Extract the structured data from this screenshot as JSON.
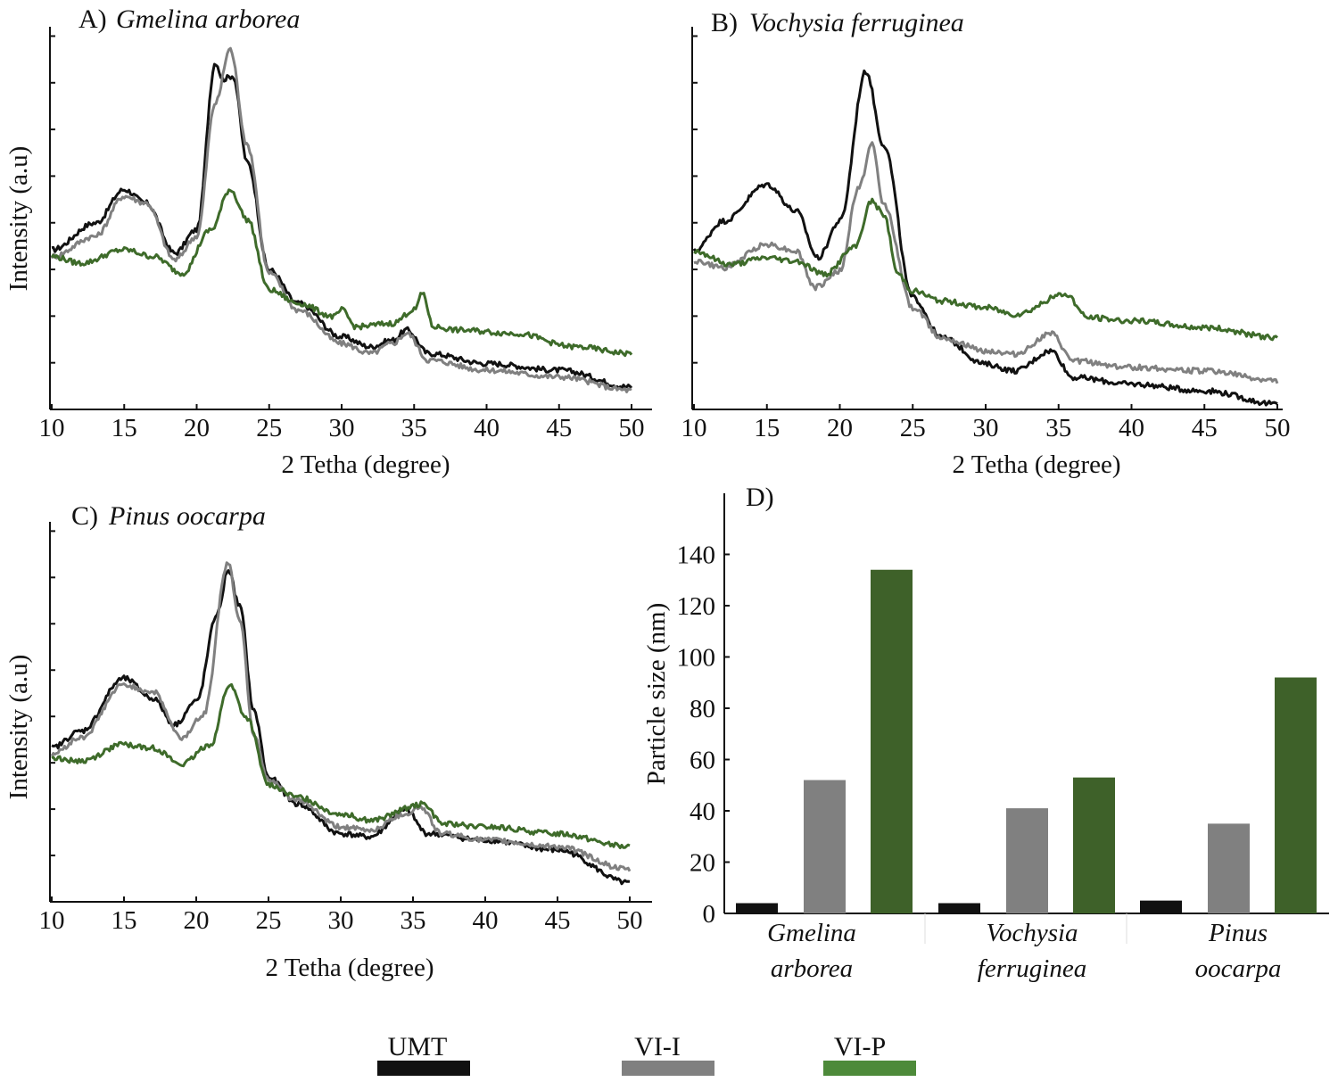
{
  "colors": {
    "UMT": "#111111",
    "VI-I": "#808080",
    "VI-P": "#3e6b2a",
    "VI-P-legend": "#4d8a3a"
  },
  "legend": {
    "items": [
      "UMT",
      "VI-I",
      "VI-P"
    ]
  },
  "chart_data": [
    {
      "id": "A",
      "type": "line",
      "label": "A)",
      "species": "Gmelina arborea",
      "xlabel": "2 Tetha (degree)",
      "ylabel": "Intensity (a.u)",
      "xlim": [
        10,
        50
      ],
      "ylim": [
        0,
        100
      ],
      "xticks": [
        "10",
        "15",
        "20",
        "25",
        "30",
        "35",
        "40",
        "45",
        "50"
      ],
      "series": [
        {
          "name": "UMT",
          "x": [
            10,
            13,
            15,
            16.5,
            18.5,
            20,
            21.3,
            21.8,
            22.5,
            23.5,
            25,
            27,
            30,
            32,
            33.5,
            34.5,
            36,
            40,
            45,
            50
          ],
          "y": [
            44,
            52,
            62,
            58,
            43,
            50,
            100,
            95,
            96,
            70,
            38,
            28,
            18,
            15,
            17,
            20,
            13,
            10,
            8,
            3
          ]
        },
        {
          "name": "VI-I",
          "x": [
            10,
            13,
            15,
            16.5,
            18.5,
            20,
            21.3,
            22.3,
            23.5,
            25,
            27,
            30,
            32,
            33.5,
            34.5,
            36,
            40,
            45,
            50
          ],
          "y": [
            42,
            48,
            60,
            58,
            41,
            48,
            88,
            104,
            75,
            37,
            26,
            16,
            13,
            16,
            19,
            11,
            8,
            6,
            2
          ]
        },
        {
          "name": "VI-P",
          "x": [
            10,
            12,
            15,
            17,
            19,
            21,
            22.3,
            23.5,
            25,
            27,
            29.5,
            30,
            31,
            33.5,
            35,
            35.6,
            36.3,
            38,
            42,
            46,
            50
          ],
          "y": [
            42,
            40,
            44,
            42,
            37,
            50,
            62,
            53,
            32,
            28,
            24,
            26,
            21,
            22,
            26,
            31,
            21,
            20,
            19,
            15,
            13
          ]
        }
      ]
    },
    {
      "id": "B",
      "type": "line",
      "label": "B)",
      "species": "Vochysia ferruginea",
      "xlabel": "2 Tetha (degree)",
      "ylabel": "",
      "xlim": [
        10,
        50
      ],
      "ylim": [
        0,
        100
      ],
      "xticks": [
        "10",
        "15",
        "20",
        "25",
        "30",
        "35",
        "40",
        "45",
        "50"
      ],
      "series": [
        {
          "name": "UMT",
          "x": [
            10,
            12,
            15,
            17,
            18.5,
            20,
            21.8,
            23,
            25,
            27,
            30,
            32,
            34.5,
            36,
            40,
            45,
            50
          ],
          "y": [
            46,
            55,
            66,
            58,
            44,
            55,
            100,
            78,
            32,
            20,
            12,
            10,
            16,
            8,
            6,
            4,
            0
          ]
        },
        {
          "name": "VI-I",
          "x": [
            10,
            12,
            15,
            17,
            18.3,
            20,
            21.3,
            22.2,
            23,
            25,
            27,
            30,
            32,
            34.5,
            36,
            40,
            45,
            50
          ],
          "y": [
            43,
            41,
            48,
            46,
            35,
            40,
            65,
            78,
            60,
            29,
            20,
            16,
            15,
            21,
            13,
            11,
            10,
            7
          ]
        },
        {
          "name": "VI-P",
          "x": [
            10,
            12.5,
            15,
            17,
            19,
            21,
            22.2,
            23,
            24,
            25,
            27,
            30,
            32,
            35.5,
            37,
            40,
            45,
            50
          ],
          "y": [
            46,
            42,
            44,
            43,
            39,
            47,
            61,
            57,
            39,
            34,
            31,
            29,
            27,
            33,
            26,
            25,
            23,
            20
          ]
        }
      ]
    },
    {
      "id": "C",
      "type": "line",
      "label": "C)",
      "species": "Pinus oocarpa",
      "xlabel": "2 Tetha (degree)",
      "ylabel": "Intensity (a.u)",
      "xlim": [
        10,
        50
      ],
      "ylim": [
        0,
        100
      ],
      "xticks": [
        "10",
        "15",
        "20",
        "25",
        "30",
        "35",
        "40",
        "45",
        "50"
      ],
      "series": [
        {
          "name": "UMT",
          "x": [
            10,
            12,
            15,
            17,
            18.5,
            20,
            21.5,
            22.2,
            23,
            24,
            25,
            27,
            30,
            32,
            34.5,
            36,
            40,
            45,
            50
          ],
          "y": [
            41,
            46,
            62,
            56,
            48,
            55,
            82,
            95,
            84,
            52,
            32,
            24,
            15,
            14,
            22,
            15,
            13,
            10,
            0
          ]
        },
        {
          "name": "VI-I",
          "x": [
            10,
            12,
            15,
            17,
            19,
            20.5,
            22.2,
            23,
            24,
            25,
            27,
            30,
            32,
            34.5,
            35.5,
            37,
            40,
            45,
            50
          ],
          "y": [
            39,
            44,
            60,
            58,
            44,
            51,
            97,
            80,
            45,
            31,
            25,
            17,
            16,
            21,
            23,
            15,
            13,
            11,
            4
          ]
        },
        {
          "name": "VI-P",
          "x": [
            10,
            12,
            15,
            17,
            19,
            21,
            22.3,
            23.5,
            25,
            27,
            30,
            32,
            35.8,
            37,
            40,
            45,
            50
          ],
          "y": [
            38,
            37,
            42,
            41,
            36,
            42,
            60,
            50,
            30,
            26,
            21,
            19,
            24,
            18,
            17,
            15,
            11
          ]
        }
      ]
    },
    {
      "id": "D",
      "type": "bar",
      "label": "D)",
      "ylabel": "Particle size (nm)",
      "ylim": [
        0,
        160
      ],
      "yticks": [
        "0",
        "20",
        "40",
        "60",
        "80",
        "100",
        "120",
        "140"
      ],
      "categories": [
        [
          "Gmelina",
          "arborea"
        ],
        [
          "Vochysia",
          "ferruginea"
        ],
        [
          "Pinus",
          "oocarpa"
        ]
      ],
      "series": [
        {
          "name": "UMT",
          "values": [
            4,
            4,
            5
          ]
        },
        {
          "name": "VI-I",
          "values": [
            52,
            41,
            35
          ]
        },
        {
          "name": "VI-P",
          "values": [
            134,
            53,
            92
          ]
        }
      ]
    }
  ]
}
